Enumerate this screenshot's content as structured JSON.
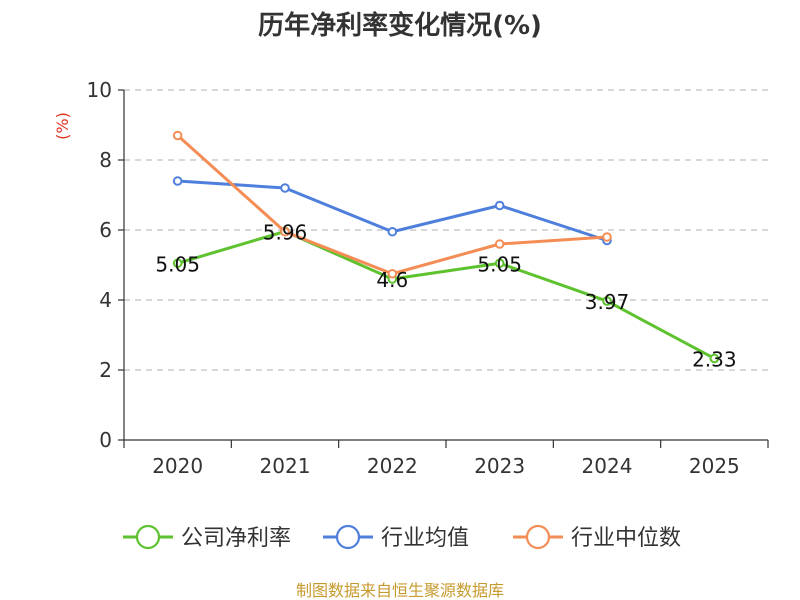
{
  "chart_data": {
    "type": "line",
    "title": "历年净利率变化情况(%)",
    "ylabel": "(%)",
    "categories": [
      "2020",
      "2021",
      "2022",
      "2023",
      "2024",
      "2025"
    ],
    "ylim": [
      0,
      10
    ],
    "yticks": [
      0,
      2,
      4,
      6,
      8,
      10
    ],
    "grid": true,
    "legend_position": "bottom",
    "series": [
      {
        "name": "公司净利率",
        "color": "#5ec22f",
        "values": [
          5.05,
          5.96,
          4.6,
          5.05,
          3.97,
          2.33
        ],
        "labels": [
          "5.05",
          "5.96",
          "4.6",
          "5.05",
          "3.97",
          "2.33"
        ]
      },
      {
        "name": "行业均值",
        "color": "#4f7fdc",
        "values": [
          7.4,
          7.2,
          5.95,
          6.7,
          5.7,
          null
        ]
      },
      {
        "name": "行业中位数",
        "color": "#f48d55",
        "values": [
          8.7,
          5.95,
          4.75,
          5.6,
          5.8,
          null
        ]
      }
    ],
    "source": "制图数据来自恒生聚源数据库"
  }
}
